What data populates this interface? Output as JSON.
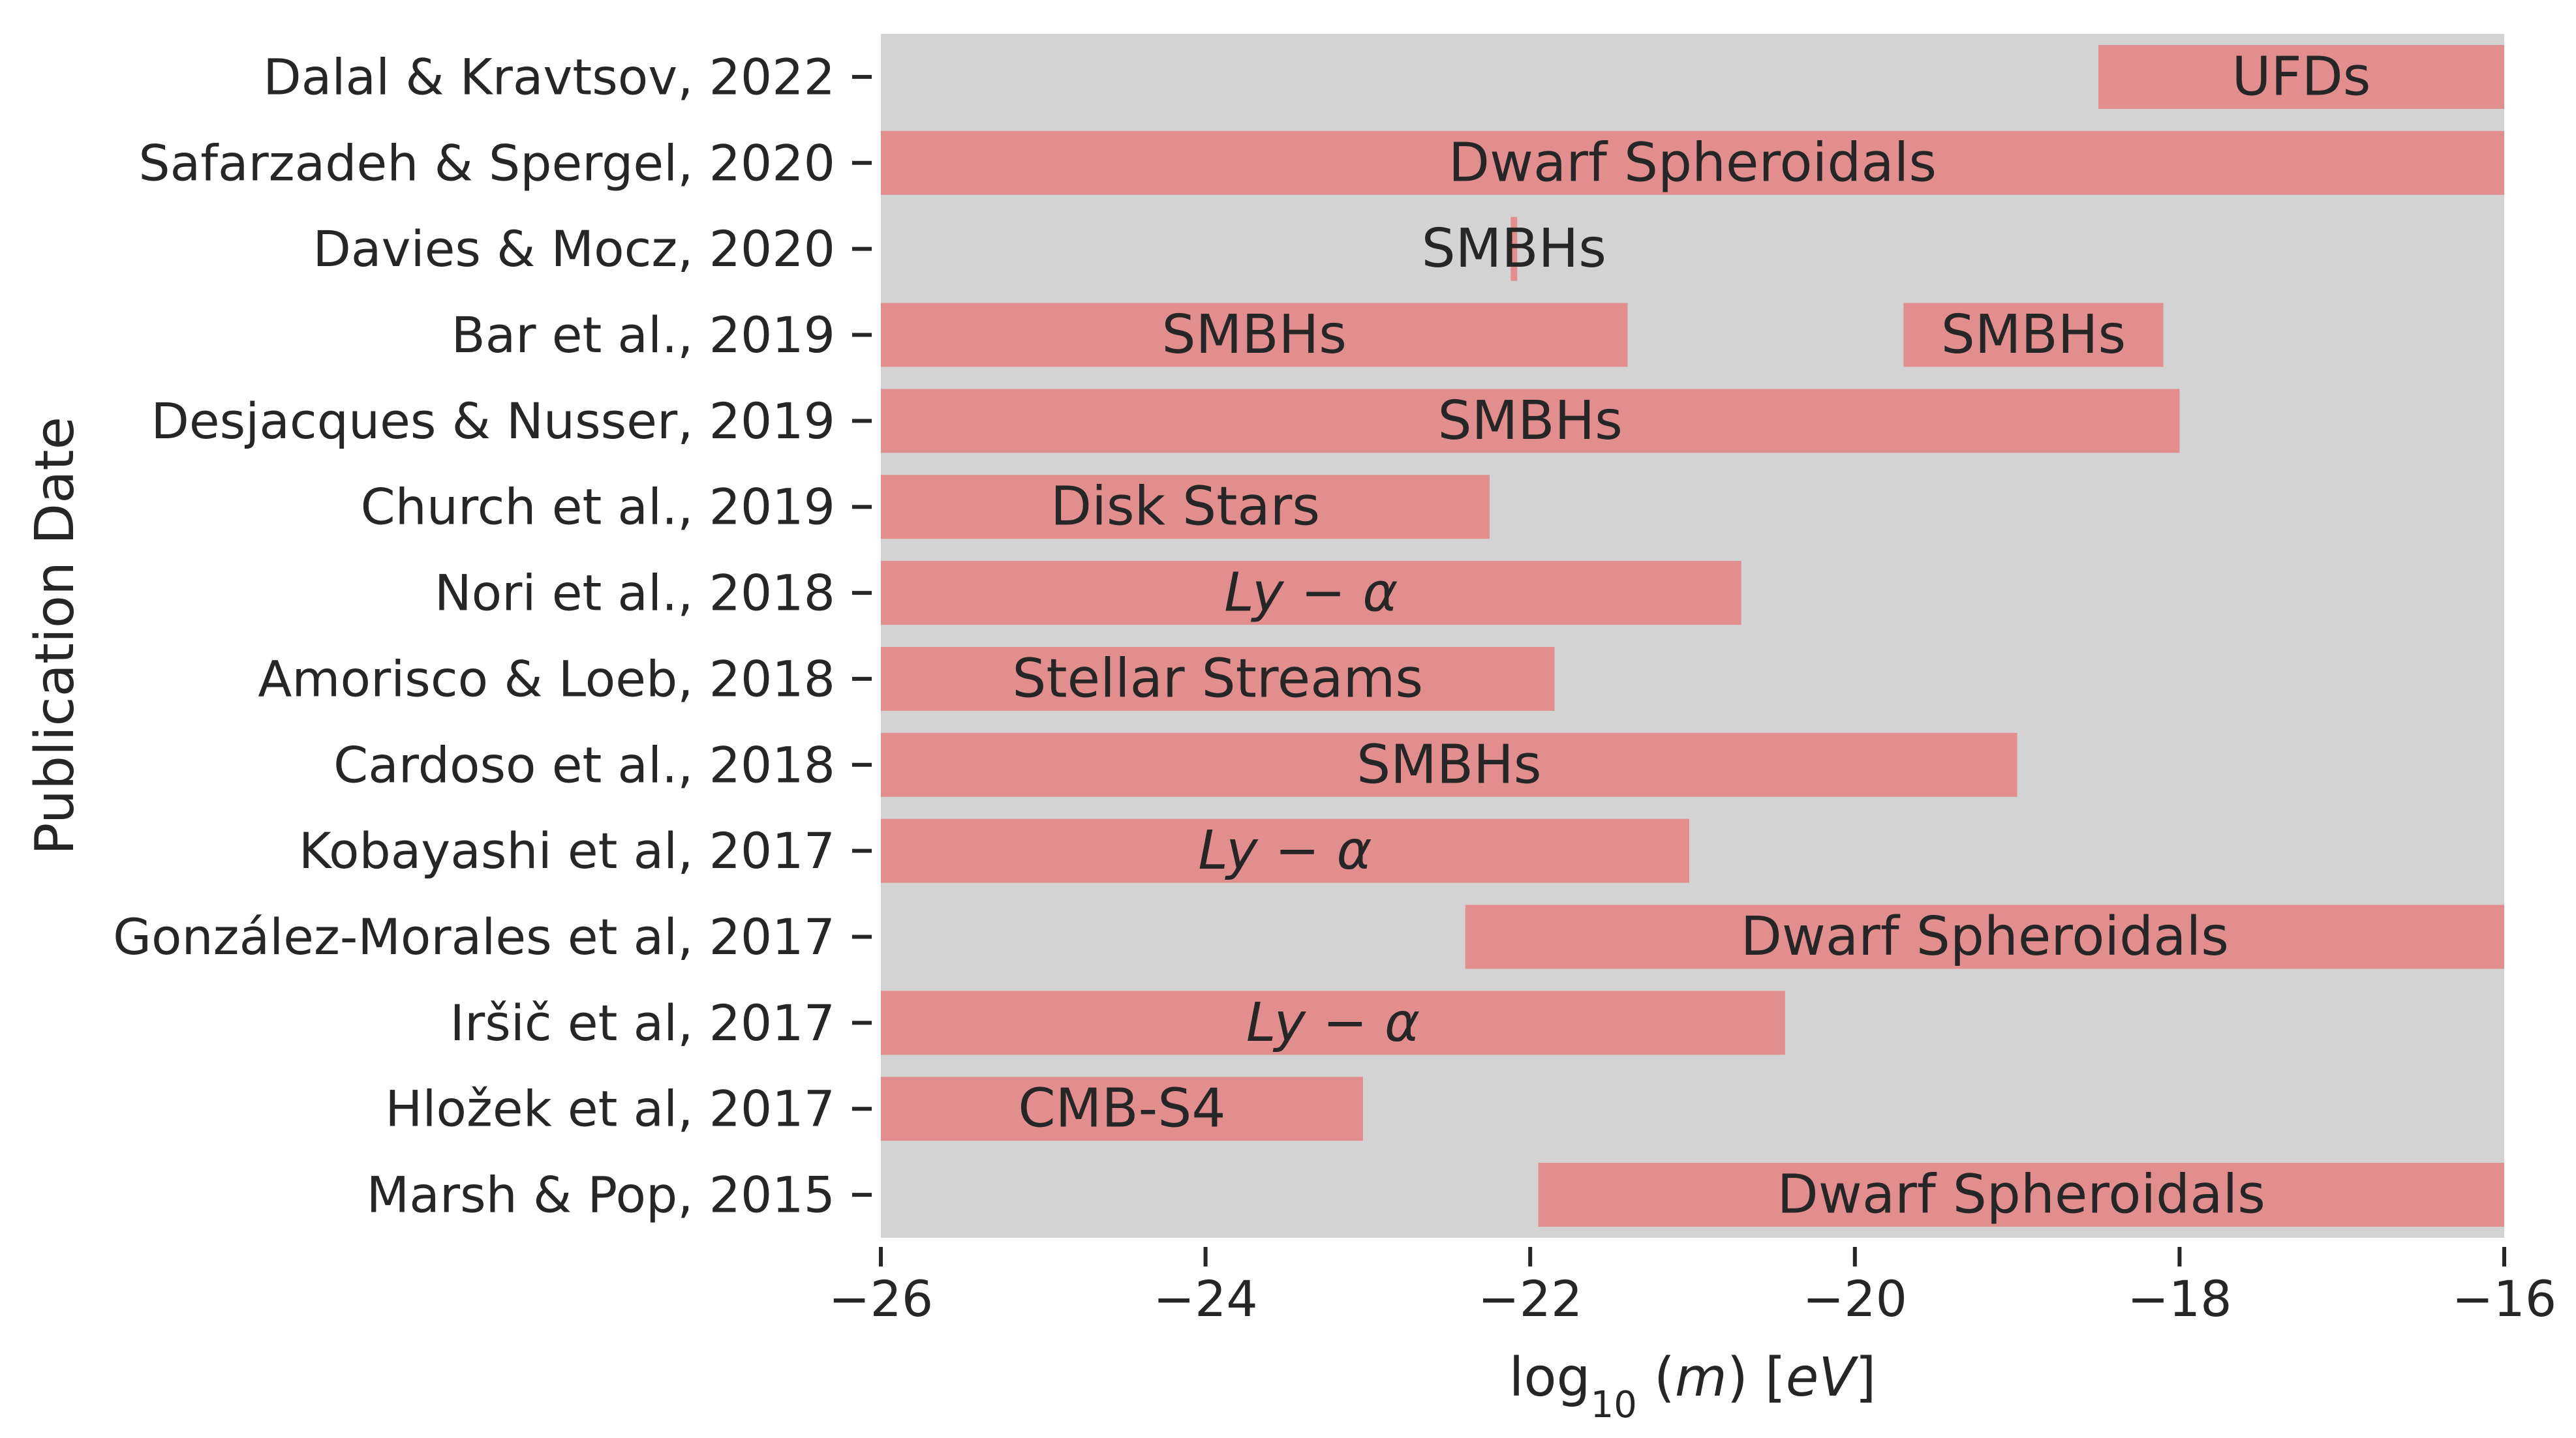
{
  "chart_data": {
    "type": "bar",
    "orientation": "horizontal-range",
    "xlabel": "log₁₀ (m) [eV]",
    "ylabel": "Publication Date",
    "xlim": [
      -26,
      -16
    ],
    "xticks": [
      -26,
      -24,
      -22,
      -20,
      -18,
      -16
    ],
    "xtick_labels": [
      "−26",
      "−24",
      "−22",
      "−20",
      "−18",
      "−16"
    ],
    "grid": false,
    "background": "#d3d3d3",
    "bar_color": "#e28e8e",
    "categories": [
      "Dalal & Kravtsov, 2022",
      "Safarzadeh & Spergel, 2020",
      "Davies & Mocz, 2020",
      "Bar et al., 2019",
      "Desjacques & Nusser, 2019",
      "Church et al., 2019",
      "Nori et al., 2018",
      "Amorisco & Loeb, 2018",
      "Cardoso et al., 2018",
      "Kobayashi et al, 2017",
      "González-Morales et al, 2017",
      "Iršič et al, 2017",
      "Hložek et al, 2017",
      "Marsh & Pop, 2015"
    ],
    "ranges": [
      {
        "category": "Dalal & Kravtsov, 2022",
        "start": -18.5,
        "end": -16,
        "label": "UFDs",
        "math": false
      },
      {
        "category": "Safarzadeh & Spergel, 2020",
        "start": -26,
        "end": -16,
        "label": "Dwarf Spheroidals",
        "math": false
      },
      {
        "category": "Davies & Mocz, 2020",
        "start": -22.12,
        "end": -22.08,
        "label": "SMBHs",
        "math": false
      },
      {
        "category": "Bar et al., 2019",
        "start": -26,
        "end": -21.4,
        "label": "SMBHs",
        "math": false
      },
      {
        "category": "Bar et al., 2019",
        "start": -19.7,
        "end": -18.1,
        "label": "SMBHs",
        "math": false
      },
      {
        "category": "Desjacques & Nusser, 2019",
        "start": -26,
        "end": -18,
        "label": "SMBHs",
        "math": false
      },
      {
        "category": "Church et al., 2019",
        "start": -26,
        "end": -22.25,
        "label": "Disk Stars",
        "math": false
      },
      {
        "category": "Nori et al., 2018",
        "start": -26,
        "end": -20.7,
        "label": "Ly − α",
        "math": true
      },
      {
        "category": "Amorisco & Loeb, 2018",
        "start": -26,
        "end": -21.85,
        "label": "Stellar Streams",
        "math": false
      },
      {
        "category": "Cardoso et al., 2018",
        "start": -26,
        "end": -19,
        "label": "SMBHs",
        "math": false
      },
      {
        "category": "Kobayashi et al, 2017",
        "start": -26,
        "end": -21.02,
        "label": "Ly − α",
        "math": true
      },
      {
        "category": "González-Morales et al, 2017",
        "start": -22.4,
        "end": -16,
        "label": "Dwarf Spheroidals",
        "math": false
      },
      {
        "category": "Iršič et al, 2017",
        "start": -26,
        "end": -20.43,
        "label": "Ly − α",
        "math": true
      },
      {
        "category": "Hložek et al, 2017",
        "start": -26,
        "end": -23.03,
        "label": "CMB-S4",
        "math": false
      },
      {
        "category": "Marsh & Pop, 2015",
        "start": -21.95,
        "end": -16,
        "label": "Dwarf Spheroidals",
        "math": false
      }
    ]
  }
}
